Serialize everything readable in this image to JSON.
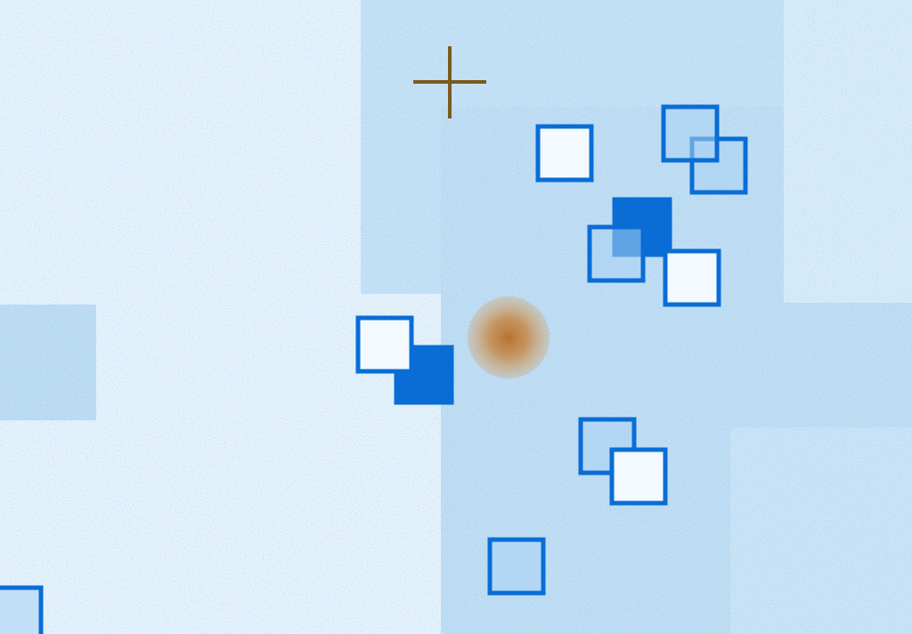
{
  "scene": {
    "description_free": true,
    "colors": {
      "background_base": "#cfe4f6",
      "background_light": "#eaf4fc",
      "background_mid": "#b3d6f1",
      "background_dark": "#8cc2ec",
      "dot_color": "#3c97d8",
      "box_outline": "#0a6dd6",
      "box_fill_solid": "#0a6dd6",
      "box_fill_light": "#ffffff",
      "box_fill_tinted": "#a9d1f2",
      "crosshair_color": "#7a5a1e",
      "glow_core": "#c06a1a",
      "glow_mid": "#d48a3a"
    },
    "icons": {
      "crosshair": "crosshair-icon",
      "target": "target-blob-icon",
      "box": "square-box-icon"
    }
  }
}
